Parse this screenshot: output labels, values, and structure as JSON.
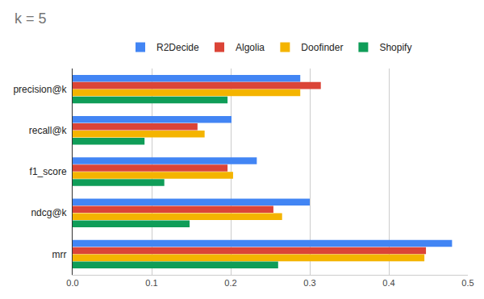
{
  "chart_data": {
    "type": "bar",
    "orientation": "horizontal",
    "title": "k = 5",
    "categories": [
      "precision@k",
      "recall@k",
      "f1_score",
      "ndcg@k",
      "mrr"
    ],
    "series": [
      {
        "name": "R2Decide",
        "color": "#4285f4",
        "values": [
          0.288,
          0.201,
          0.233,
          0.3,
          0.48
        ]
      },
      {
        "name": "Algolia",
        "color": "#db4437",
        "values": [
          0.314,
          0.158,
          0.196,
          0.254,
          0.447
        ]
      },
      {
        "name": "Doofinder",
        "color": "#f4b400",
        "values": [
          0.288,
          0.167,
          0.203,
          0.265,
          0.445
        ]
      },
      {
        "name": "Shopify",
        "color": "#0f9d58",
        "values": [
          0.196,
          0.091,
          0.116,
          0.148,
          0.26
        ]
      }
    ],
    "xlim": [
      0,
      0.5
    ],
    "xticks": [
      {
        "value": 0,
        "label": "0.0"
      },
      0.1,
      0.2,
      0.3,
      0.4,
      0.5
    ],
    "grid": true,
    "legend": "top"
  }
}
